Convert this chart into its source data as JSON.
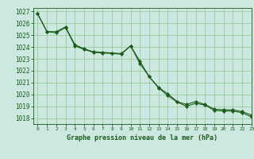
{
  "title": "Graphe pression niveau de la mer (hPa)",
  "bg_color": "#cce8e0",
  "grid_color": "#99cc99",
  "line_color": "#1a5c1a",
  "marker_color": "#1a5c1a",
  "xlim": [
    -0.5,
    23
  ],
  "ylim": [
    1017.5,
    1027.3
  ],
  "xticks": [
    0,
    1,
    2,
    3,
    4,
    5,
    6,
    7,
    8,
    9,
    10,
    11,
    12,
    13,
    14,
    15,
    16,
    17,
    18,
    19,
    20,
    21,
    22,
    23
  ],
  "yticks": [
    1018,
    1019,
    1020,
    1021,
    1022,
    1023,
    1024,
    1025,
    1026,
    1027
  ],
  "series1_x": [
    0,
    1,
    2,
    3,
    4,
    5,
    6,
    7,
    8,
    9,
    10,
    11,
    12,
    13,
    14,
    15,
    16,
    17,
    18,
    19,
    20,
    21,
    22,
    23
  ],
  "series1_y": [
    1026.8,
    1025.3,
    1025.2,
    1025.65,
    1024.1,
    1023.8,
    1023.55,
    1023.5,
    1023.45,
    1023.4,
    1024.1,
    1022.6,
    1021.5,
    1020.55,
    1019.9,
    1019.35,
    1019.0,
    1019.25,
    1019.1,
    1018.65,
    1018.6,
    1018.6,
    1018.45,
    1018.1
  ],
  "series2_x": [
    0,
    1,
    2,
    3,
    4,
    5,
    6,
    7,
    8,
    9,
    10,
    11,
    12,
    13,
    14,
    15,
    16,
    17,
    18,
    19,
    20,
    21,
    22,
    23
  ],
  "series2_y": [
    1026.8,
    1025.3,
    1025.3,
    1025.7,
    1024.2,
    1023.85,
    1023.6,
    1023.55,
    1023.5,
    1023.45,
    1024.1,
    1022.8,
    1021.5,
    1020.6,
    1020.05,
    1019.4,
    1019.15,
    1019.4,
    1019.15,
    1018.75,
    1018.7,
    1018.7,
    1018.55,
    1018.25
  ],
  "xlabel_fontsize": 6,
  "ytick_fontsize": 5.5,
  "xtick_fontsize": 4.5
}
